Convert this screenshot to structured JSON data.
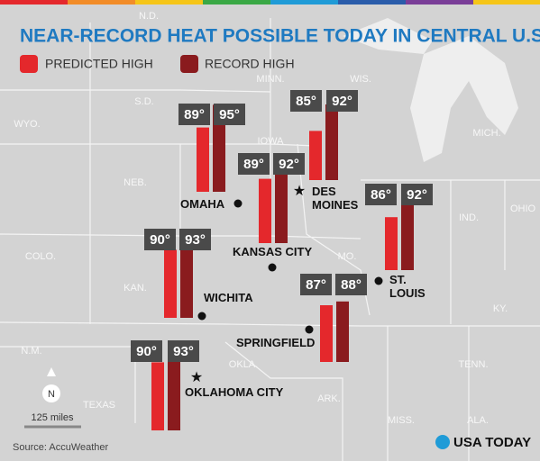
{
  "title": "NEAR-RECORD HEAT POSSIBLE TODAY IN CENTRAL U.S.",
  "legend": [
    {
      "name": "PREDICTED HIGH",
      "color": "#e4282c"
    },
    {
      "name": "RECORD HIGH",
      "color": "#8a1b1e"
    }
  ],
  "cities": [
    {
      "name": "OMAHA",
      "marker": "dot",
      "predicted": 89,
      "predicted_label": "89°",
      "record": 95,
      "record_label": "95°"
    },
    {
      "name": "DES MOINES",
      "marker": "star",
      "predicted": 85,
      "predicted_label": "85°",
      "record": 92,
      "record_label": "92°"
    },
    {
      "name": "KANSAS CITY",
      "marker": "dot",
      "predicted": 89,
      "predicted_label": "89°",
      "record": 92,
      "record_label": "92°"
    },
    {
      "name": "ST. LOUIS",
      "marker": "dot",
      "predicted": 86,
      "predicted_label": "86°",
      "record": 92,
      "record_label": "92°"
    },
    {
      "name": "WICHITA",
      "marker": "dot",
      "predicted": 90,
      "predicted_label": "90°",
      "record": 93,
      "record_label": "93°"
    },
    {
      "name": "SPRINGFIELD",
      "marker": "dot",
      "predicted": 87,
      "predicted_label": "87°",
      "record": 88,
      "record_label": "88°"
    },
    {
      "name": "OKLAHOMA CITY",
      "marker": "star",
      "predicted": 90,
      "predicted_label": "90°",
      "record": 93,
      "record_label": "93°"
    }
  ],
  "states": [
    "N.D.",
    "S.D.",
    "MINN.",
    "WIS.",
    "WYO.",
    "NEB.",
    "IOWA",
    "MICH.",
    "OHIO",
    "IND.",
    "COLO.",
    "KAN.",
    "MO.",
    "KY.",
    "N.M.",
    "OKLA.",
    "TENN.",
    "TEXAS",
    "ARK.",
    "MISS.",
    "ALA."
  ],
  "compass": "N",
  "scale": "125 miles",
  "source": "Source: AccuWeather",
  "logo": "USA TODAY"
}
